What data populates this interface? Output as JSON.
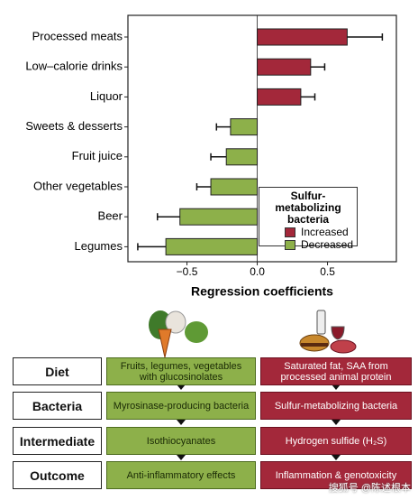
{
  "chart_data": {
    "type": "bar",
    "orientation": "horizontal",
    "categories": [
      "Processed meats",
      "Low–calorie drinks",
      "Liquor",
      "Sweets & desserts",
      "Fruit juice",
      "Other vegetables",
      "Beer",
      "Legumes"
    ],
    "series": [
      {
        "name": "Increased",
        "color": "#a3283a",
        "values": [
          0.64,
          0.38,
          0.31,
          null,
          null,
          null,
          null,
          null
        ],
        "errors": [
          0.25,
          0.1,
          0.1,
          null,
          null,
          null,
          null,
          null
        ]
      },
      {
        "name": "Decreased",
        "color": "#8db04a",
        "values": [
          null,
          null,
          null,
          -0.19,
          -0.22,
          -0.33,
          -0.55,
          -0.65
        ],
        "errors": [
          null,
          null,
          null,
          0.1,
          0.11,
          0.1,
          0.16,
          0.2
        ]
      }
    ],
    "legend_title": "Sulfur-metabolizing bacteria",
    "x_label": "Regression coefficients",
    "xlim": [
      -0.92,
      0.99
    ],
    "xticks": [
      {
        "value": -0.5,
        "label": "−0.5"
      },
      {
        "value": 0,
        "label": "0.0"
      },
      0.5
    ]
  },
  "diagram": {
    "rows": [
      {
        "label": "Diet",
        "plant": "Fruits, legumes, vegetables with glucosinolates",
        "animal": "Saturated fat, SAA from processed animal protein"
      },
      {
        "label": "Bacteria",
        "plant": "Myrosinase-producing bacteria",
        "animal": "Sulfur-metabolizing bacteria"
      },
      {
        "label": "Intermediate",
        "plant": "Isothiocyanates",
        "animal": "Hydrogen sulfide (H₂S)"
      },
      {
        "label": "Outcome",
        "plant": "Anti-inflammatory effects",
        "animal": "Inflammation & genotoxicity"
      }
    ]
  },
  "watermark": "搜狐号 @陈述根本"
}
